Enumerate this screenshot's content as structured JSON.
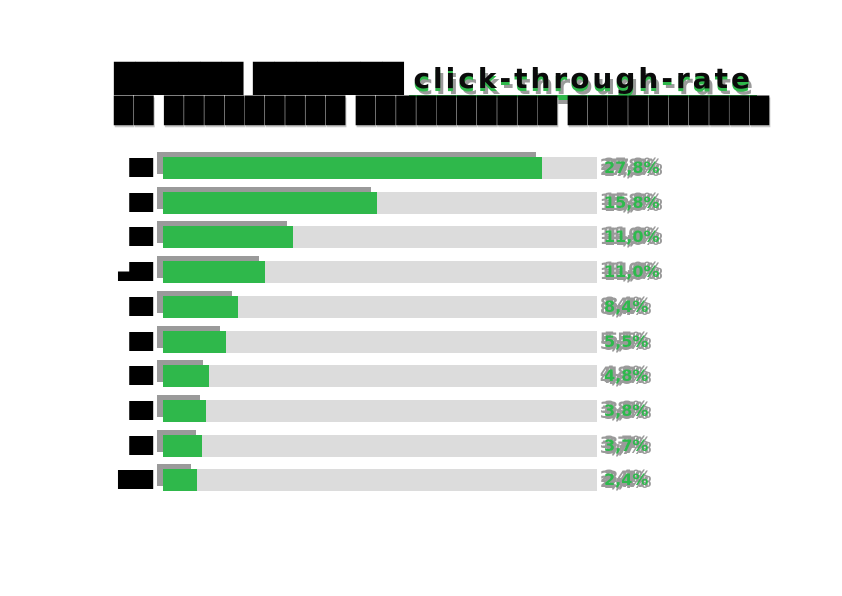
{
  "title": {
    "line1_prefix": "██████ ███████",
    "line1_highlight": "click-through-rate",
    "line2": "██ █████████ ██████████ ██████████"
  },
  "chart_data": {
    "type": "bar",
    "orientation": "horizontal",
    "unit": "%",
    "decimal_separator": ",",
    "title_highlight_text": "click-through-rate",
    "categories": [
      "██",
      "██",
      "██",
      "▄██",
      "██",
      "██",
      "██",
      "██",
      "██",
      "███"
    ],
    "categories_note": "category labels are illegible black glyph blobs in the source image",
    "values": [
      27.8,
      15.8,
      11.0,
      11.0,
      8.4,
      5.5,
      4.8,
      3.8,
      3.7,
      2.4
    ],
    "value_labels": [
      "27,8%",
      "15,8%",
      "11,0%",
      "11,0%",
      "8,4%",
      "5,5%",
      "4,8%",
      "3,8%",
      "3,7%",
      "2,4%"
    ],
    "bar_fractions": [
      0.873,
      0.493,
      0.3,
      0.235,
      0.173,
      0.145,
      0.106,
      0.099,
      0.09,
      0.078
    ],
    "legend": "none",
    "grid": "off",
    "axis_ticks": "none",
    "colors": {
      "bar_fill": "#2fb84b",
      "bar_track": "#dcdcdc",
      "shadow_gray": "#9a9a9a",
      "value_label_green": "#2eb94d",
      "title_underline_green": "#2fb84b",
      "text_black": "#000000",
      "background": "#ffffff"
    }
  }
}
